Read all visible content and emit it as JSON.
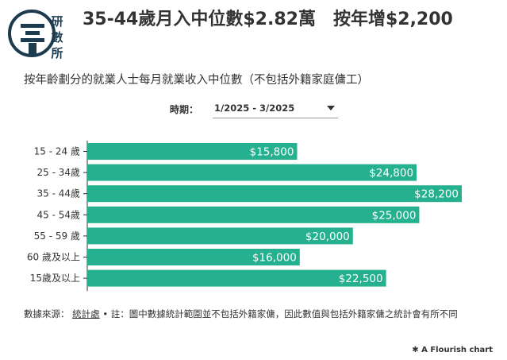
{
  "header": {
    "logo_text": "研數所",
    "title": "35-44歲月入中位數$2.82萬　按年增$2,200",
    "subtitle": "按年齡劃分的就業人士每月就業收入中位數（不包括外籍家庭傭工）"
  },
  "controls": {
    "period_label": "時期：",
    "period_value": "1/2025 - 3/2025"
  },
  "chart_data": {
    "type": "bar",
    "orientation": "horizontal",
    "categories": [
      "15 - 24 歲",
      "25 - 34歲",
      "35 - 44歲",
      "45 - 54歲",
      "55 - 59 歲",
      "60 歲及以上",
      "15歲及以上"
    ],
    "values": [
      15800,
      24800,
      28200,
      25000,
      20000,
      16000,
      22500
    ],
    "value_labels": [
      "$15,800",
      "$24,800",
      "$28,200",
      "$25,000",
      "$20,000",
      "$16,000",
      "$22,500"
    ],
    "xlim": [
      0,
      28200
    ],
    "grid": false,
    "bar_color": "#25b08f"
  },
  "footer": {
    "source_label": "數據來源：",
    "source_name": "統計處",
    "note": "• 註：圖中數據統計範圍並不包括外籍家傭，因此數值與包括外籍家傭之統計會有所不同",
    "credit": "A Flourish chart"
  }
}
